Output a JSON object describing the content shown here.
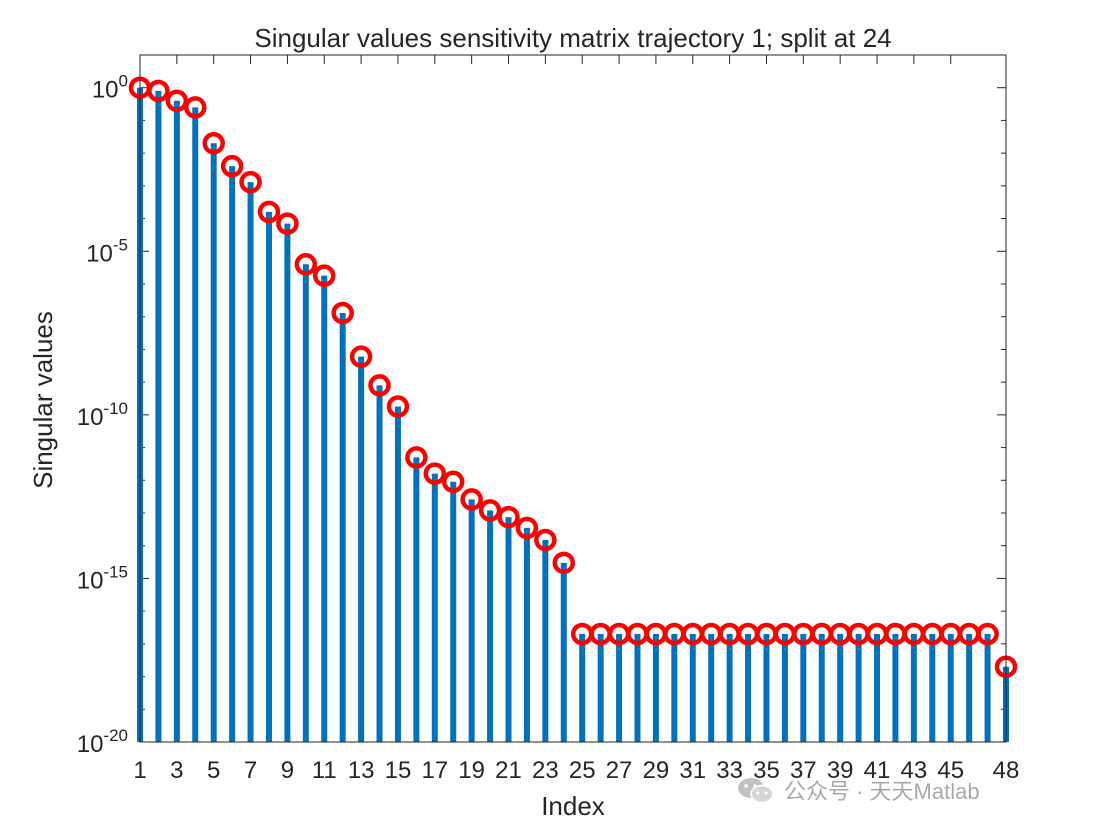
{
  "chart_data": {
    "type": "stem",
    "title": "Singular values sensitivity matrix trajectory 1; split at 24",
    "xlabel": "Index",
    "ylabel": "Singular values",
    "yscale": "log",
    "xlim": [
      1,
      48
    ],
    "ylim": [
      1e-20,
      10
    ],
    "grid": false,
    "x_tick_labels": [
      "1",
      "3",
      "5",
      "7",
      "9",
      "11",
      "13",
      "15",
      "17",
      "19",
      "21",
      "23",
      "25",
      "27",
      "29",
      "31",
      "33",
      "35",
      "37",
      "39",
      "41",
      "43",
      "45",
      "48"
    ],
    "y_ticks": [
      {
        "exp": "0",
        "value": 1
      },
      {
        "exp": "-5",
        "value": 1e-05
      },
      {
        "exp": "-10",
        "value": 1e-10
      },
      {
        "exp": "-15",
        "value": 1e-15
      },
      {
        "exp": "-20",
        "value": 1e-20
      }
    ],
    "x": [
      1,
      2,
      3,
      4,
      5,
      6,
      7,
      8,
      9,
      10,
      11,
      12,
      13,
      14,
      15,
      16,
      17,
      18,
      19,
      20,
      21,
      22,
      23,
      24,
      25,
      26,
      27,
      28,
      29,
      30,
      31,
      32,
      33,
      34,
      35,
      36,
      37,
      38,
      39,
      40,
      41,
      42,
      43,
      44,
      45,
      46,
      47,
      48
    ],
    "values": [
      1.0,
      0.8,
      0.4,
      0.25,
      0.02,
      0.004,
      0.0013,
      0.00016,
      7e-05,
      4e-06,
      1.8e-06,
      1.3e-07,
      6e-09,
      8e-10,
      1.8e-10,
      5e-12,
      1.6e-12,
      9e-13,
      2.6e-13,
      1.2e-13,
      7.5e-14,
      3.5e-14,
      1.5e-14,
      3e-15,
      2e-17,
      2e-17,
      2e-17,
      2e-17,
      2e-17,
      2e-17,
      2e-17,
      2e-17,
      2e-17,
      2e-17,
      2e-17,
      2e-17,
      2e-17,
      2e-17,
      2e-17,
      2e-17,
      2e-17,
      2e-17,
      2e-17,
      2e-17,
      2e-17,
      2e-17,
      2e-17,
      2e-18
    ],
    "stem_color": "#0072BD",
    "marker_color": "#FF0000"
  },
  "watermark": {
    "text": "公众号 · 天天Matlab",
    "icon": "wechat-bubbles-icon"
  }
}
